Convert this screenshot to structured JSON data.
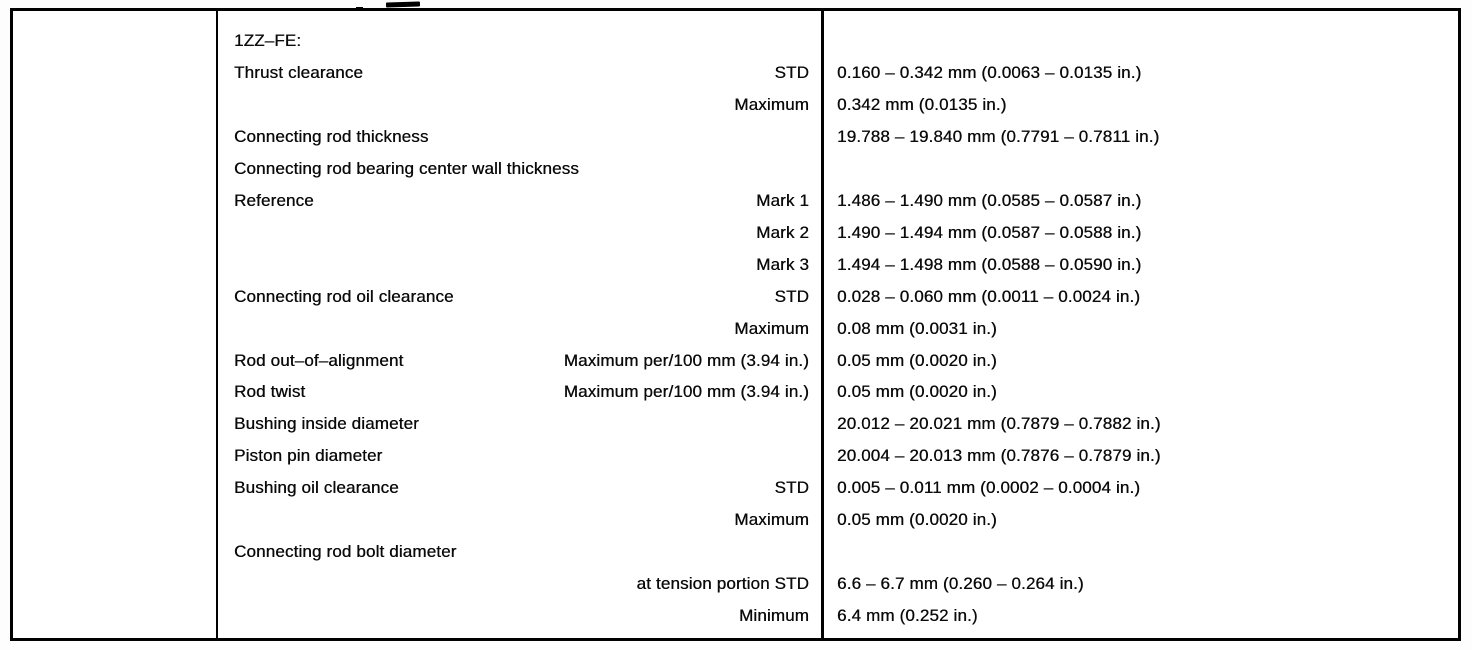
{
  "table": {
    "engine_header": "1ZZ–FE:",
    "rows": [
      {
        "item": "1ZZ–FE:",
        "condition": "",
        "value": ""
      },
      {
        "item": "Thrust clearance",
        "condition": "STD",
        "value": "0.160 – 0.342 mm (0.0063 – 0.0135 in.)"
      },
      {
        "item": "",
        "condition": "Maximum",
        "value": "0.342 mm (0.0135 in.)"
      },
      {
        "item": "Connecting rod thickness",
        "condition": "",
        "value": "19.788 – 19.840 mm (0.7791 – 0.7811 in.)"
      },
      {
        "item": "Connecting rod bearing center wall thickness",
        "condition": "",
        "value": ""
      },
      {
        "item": "Reference",
        "condition": "Mark 1",
        "value": "1.486 – 1.490 mm (0.0585 – 0.0587 in.)"
      },
      {
        "item": "",
        "condition": "Mark 2",
        "value": "1.490 – 1.494 mm (0.0587 – 0.0588 in.)"
      },
      {
        "item": "",
        "condition": "Mark 3",
        "value": "1.494 – 1.498 mm (0.0588 – 0.0590 in.)"
      },
      {
        "item": "Connecting rod oil clearance",
        "condition": "STD",
        "value": "0.028 – 0.060 mm (0.0011 – 0.0024 in.)"
      },
      {
        "item": "",
        "condition": "Maximum",
        "value": "0.08 mm (0.0031 in.)"
      },
      {
        "item": "Rod out–of–alignment",
        "condition": "Maximum per/100 mm (3.94 in.)",
        "value": "0.05 mm (0.0020 in.)"
      },
      {
        "item": "Rod twist",
        "condition": "Maximum per/100 mm (3.94 in.)",
        "value": "0.05 mm (0.0020 in.)"
      },
      {
        "item": "Bushing inside diameter",
        "condition": "",
        "value": "20.012 – 20.021 mm (0.7879 – 0.7882 in.)"
      },
      {
        "item": "Piston pin diameter",
        "condition": "",
        "value": "20.004 – 20.013 mm (0.7876 – 0.7879 in.)"
      },
      {
        "item": "Bushing oil clearance",
        "condition": "STD",
        "value": "0.005 – 0.011 mm (0.0002 – 0.0004 in.)"
      },
      {
        "item": "",
        "condition": "Maximum",
        "value": "0.05 mm (0.0020 in.)"
      },
      {
        "item": "Connecting rod bolt diameter",
        "condition": "",
        "value": ""
      },
      {
        "item": "",
        "condition": "at tension portion STD",
        "value": "6.6 – 6.7 mm (0.260 – 0.264 in.)"
      },
      {
        "item": "",
        "condition": "Minimum",
        "value": "6.4 mm (0.252 in.)"
      }
    ]
  }
}
